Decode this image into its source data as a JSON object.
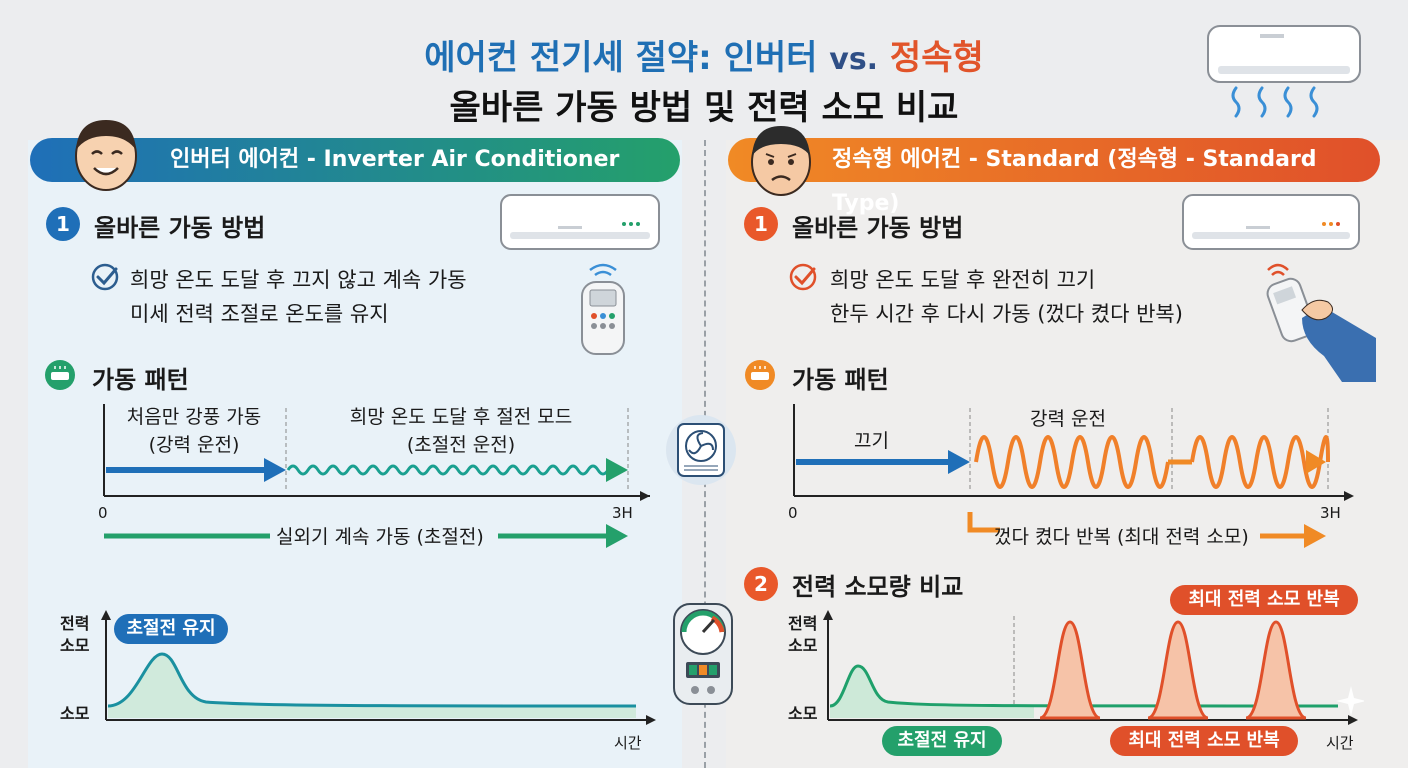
{
  "header": {
    "title_part1": "에어컨 전기세 절약: 인버터",
    "title_vs": "vs.",
    "title_part2": "정속형",
    "subtitle": "올바른 가동 방법 및 전력 소모 비교"
  },
  "left": {
    "banner": "인버터 에어컨 - Inverter Air Conditioner",
    "section1_num": "1",
    "section1_title": "올바른 가동 방법",
    "check_line1": "희망 온도 도달 후 끄지 않고 계속 가동",
    "check_line2": "미세 전력 조절로 온도를 유지",
    "pattern_title": "가동 패턴",
    "phase1_line1": "처음만 강풍 가동",
    "phase1_line2": "(강력 운전)",
    "phase2_line1": "희망 온도 도달 후 절전 모드",
    "phase2_line2": "(초절전 운전)",
    "axis_start": "0",
    "axis_end": "3H",
    "outdoor_label": "실외기 계속 가동 (초절전)",
    "power_y_label_top": "전력",
    "power_y_label_mid": "소모",
    "power_y_label_low": "소모",
    "power_badge": "초절전 유지",
    "power_x_label": "시간"
  },
  "right": {
    "banner": "정속형 에어컨 - Standard (정속형 - Standard Type)",
    "section1_num": "1",
    "section1_title": "올바른 가동 방법",
    "check_line1": "희망 온도 도달 후 완전히 끄기",
    "check_line2": "한두 시간 후 다시 가동 (껐다 켰다 반복)",
    "pattern_title": "가동 패턴",
    "phase_off": "끄기",
    "phase_strong": "강력 운전",
    "axis_start": "0",
    "axis_end": "3H",
    "cycle_label": "껐다 켰다 반복 (최대 전력 소모)",
    "section2_num": "2",
    "section2_title": "전력 소모량 비교",
    "power_badge_top": "최대 전력 소모 반복",
    "power_y_label_top": "전력",
    "power_y_label_mid": "소모",
    "power_y_label_low": "소모",
    "power_badge_green": "초절전 유지",
    "power_badge_bottom": "최대 전력 소모 반복",
    "power_x_label": "시간"
  },
  "colors": {
    "inverter_blue": "#1f6fb8",
    "inverter_green": "#24a06b",
    "standard_orange": "#f08a25",
    "standard_red": "#e0502a"
  },
  "icons": [
    "happy-face-icon",
    "sad-face-icon",
    "air-conditioner-icon",
    "remote-control-icon",
    "wifi-signal-icon",
    "check-icon",
    "outdoor-unit-icon",
    "power-meter-icon",
    "hand-remote-icon",
    "sparkle-icon"
  ]
}
